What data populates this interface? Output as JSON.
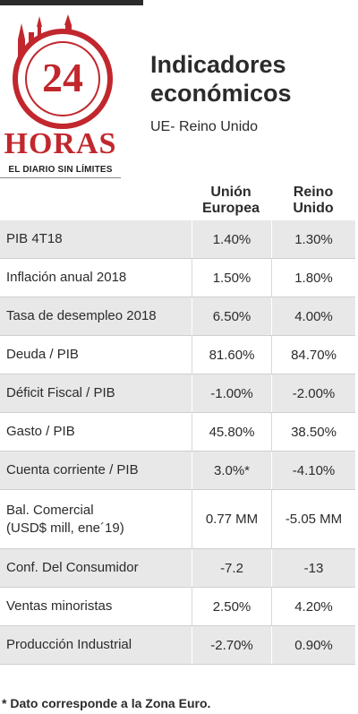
{
  "logo": {
    "number": "24",
    "name": "HORAS",
    "tagline": "EL DIARIO SIN LÍMITES"
  },
  "header": {
    "title_line1": "Indicadores",
    "title_line2": "económicos",
    "subtitle": "UE- Reino Unido"
  },
  "columns": {
    "eu_line1": "Unión",
    "eu_line2": "Europea",
    "uk_line1": "Reino",
    "uk_line2": "Unido"
  },
  "rows": [
    {
      "label": "PIB 4T18",
      "eu": "1.40%",
      "uk": "1.30%"
    },
    {
      "label": "Inflación anual 2018",
      "eu": "1.50%",
      "uk": "1.80%"
    },
    {
      "label": "Tasa de desempleo 2018",
      "eu": "6.50%",
      "uk": "4.00%"
    },
    {
      "label": "Deuda / PIB",
      "eu": "81.60%",
      "uk": "84.70%"
    },
    {
      "label": "Déficit Fiscal /  PIB",
      "eu": "-1.00%",
      "uk": "-2.00%"
    },
    {
      "label": "Gasto / PIB",
      "eu": "45.80%",
      "uk": "38.50%"
    },
    {
      "label": "Cuenta corriente / PIB",
      "eu": "3.0%*",
      "uk": "-4.10%"
    },
    {
      "label": "Bal. Comercial",
      "label2": "(USD$ mill, ene´19)",
      "eu": "0.77 MM",
      "uk": "-5.05 MM"
    },
    {
      "label": "Conf. Del Consumidor",
      "eu": "-7.2",
      "uk": "-13"
    },
    {
      "label": "Ventas minoristas",
      "eu": "2.50%",
      "uk": "4.20%"
    },
    {
      "label": "Producción Industrial",
      "eu": "-2.70%",
      "uk": "0.90%"
    }
  ],
  "footnote": "* Dato corresponde a la Zona Euro.",
  "colors": {
    "brand_red": "#c1272d",
    "row_shade": "#e8e8e8",
    "text": "#2b2b2b"
  }
}
